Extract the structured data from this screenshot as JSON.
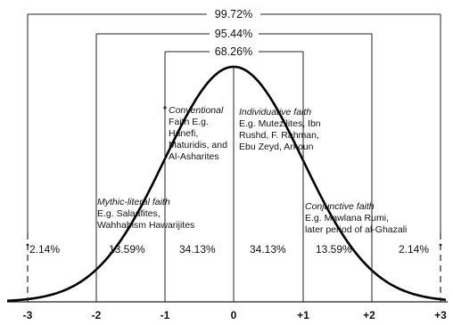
{
  "brackets": [
    {
      "label": "99.72%"
    },
    {
      "label": "95.44%"
    },
    {
      "label": "68.26%"
    }
  ],
  "regions": [
    "2.14%",
    "13.59%",
    "34.13%",
    "34.13%",
    "13.59%",
    "2.14%"
  ],
  "axis_ticks": [
    "-3",
    "-2",
    "-1",
    "0",
    "+1",
    "+2",
    "+3"
  ],
  "annotations": [
    {
      "name": "conventional-faith",
      "title": "Conventional",
      "lines": [
        "Faith E.g.",
        "Hanefi,",
        "Maturidis, and",
        "Al-Asharites"
      ]
    },
    {
      "name": "individuative-faith",
      "title": "Individuative faith",
      "lines": [
        "E.g. Mutezilites, Ibn",
        "Rushd, F. Rahman,",
        "Ebu Zeyd, Arkoun"
      ]
    },
    {
      "name": "mythic-literal-faith",
      "title": "Mythic-literal faith",
      "lines": [
        "E.g. Salaafites,",
        "Wahhabism Hawarijites"
      ]
    },
    {
      "name": "conjunctive-faith",
      "title": "Conjunctive faith",
      "lines": [
        "E.g. Mawlana Rumi,",
        "later period of al-Ghazali"
      ]
    }
  ]
}
